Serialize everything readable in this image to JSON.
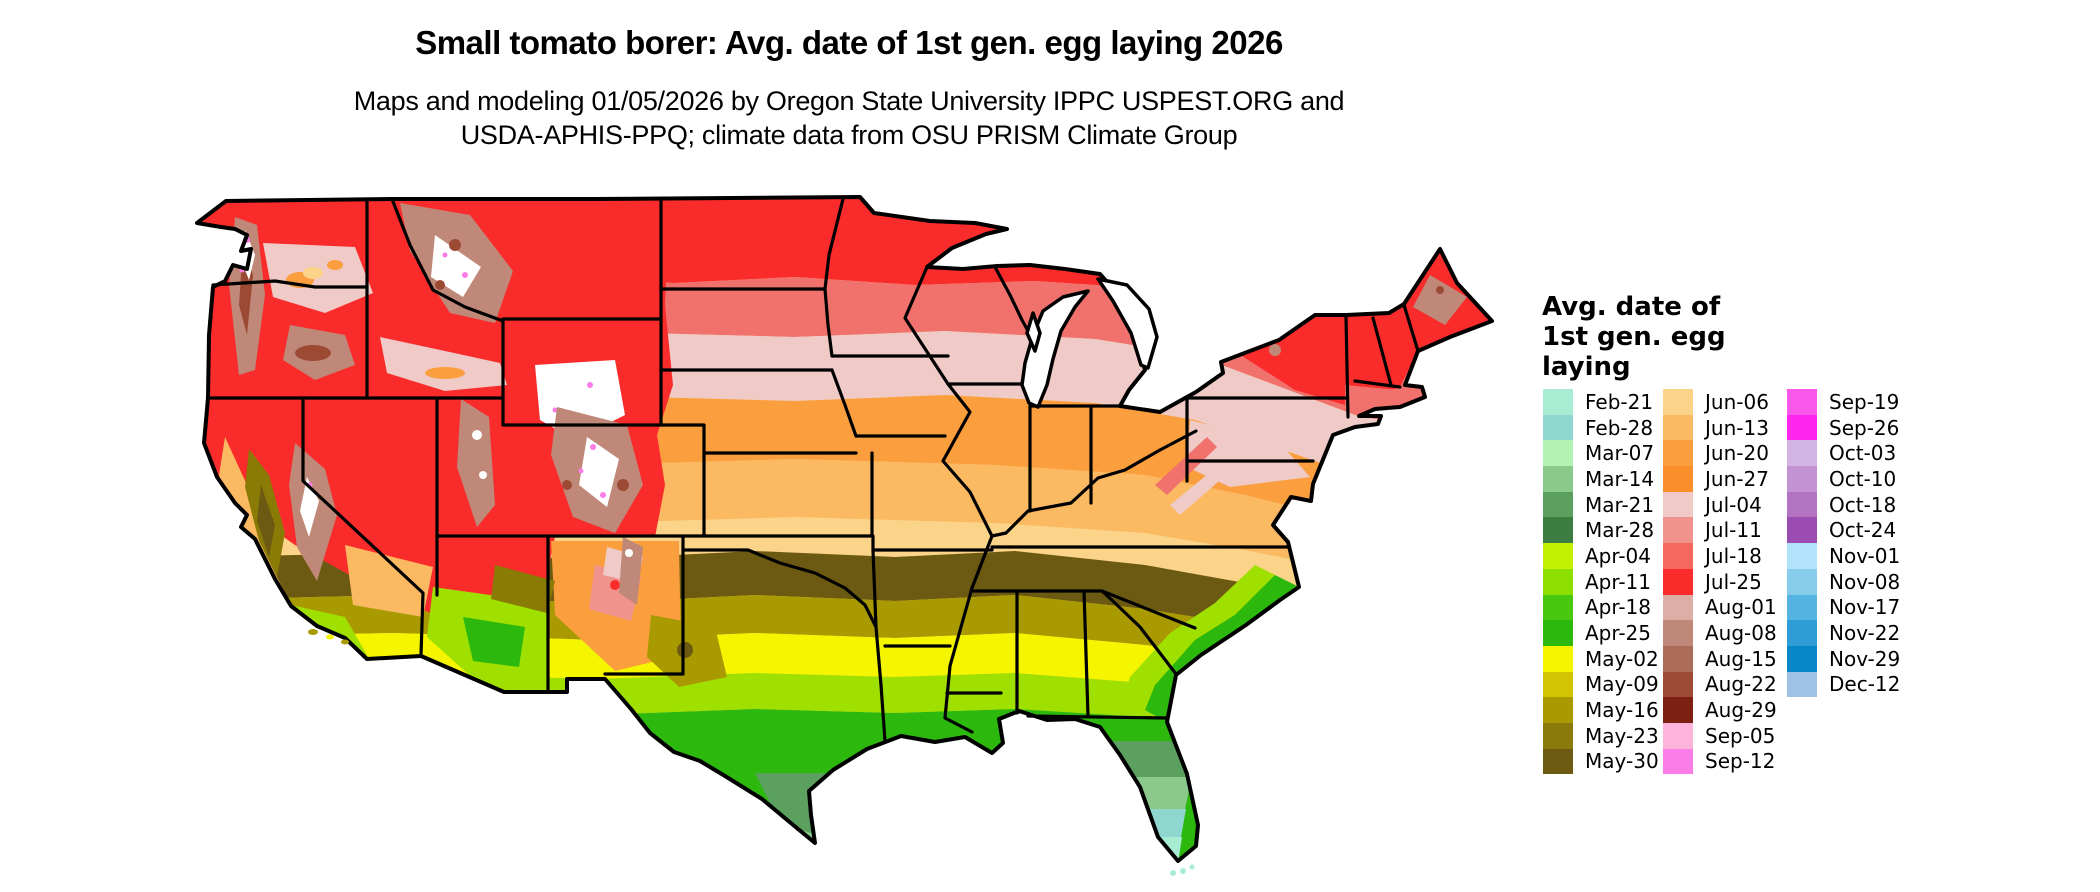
{
  "title": "Small tomato borer: Avg. date of 1st gen. egg laying 2026",
  "subtitle": {
    "line1": "Maps and modeling 01/05/2026 by Oregon State University IPPC USPEST.ORG and",
    "line2": "USDA-APHIS-PPQ; climate data from OSU PRISM Climate Group"
  },
  "legend": {
    "title_lines": [
      "Avg. date of",
      "1st gen. egg",
      "laying"
    ],
    "columns": [
      [
        {
          "label": "Feb-21",
          "color": "#a9ecd4"
        },
        {
          "label": "Feb-28",
          "color": "#8fd7ce"
        },
        {
          "label": "Mar-07",
          "color": "#b2f2b2"
        },
        {
          "label": "Mar-14",
          "color": "#8bc88b"
        },
        {
          "label": "Mar-21",
          "color": "#5ba05f"
        },
        {
          "label": "Mar-28",
          "color": "#3c7d42"
        },
        {
          "label": "Apr-04",
          "color": "#c3ef00"
        },
        {
          "label": "Apr-11",
          "color": "#8cdf00"
        },
        {
          "label": "Apr-18",
          "color": "#4ac810"
        },
        {
          "label": "Apr-25",
          "color": "#2db80e"
        },
        {
          "label": "May-02",
          "color": "#f5f500"
        },
        {
          "label": "May-09",
          "color": "#d2c400"
        },
        {
          "label": "May-16",
          "color": "#a89a00"
        },
        {
          "label": "May-23",
          "color": "#897a0a"
        },
        {
          "label": "May-30",
          "color": "#6d5a12"
        }
      ],
      [
        {
          "label": "Jun-06",
          "color": "#fbd389"
        },
        {
          "label": "Jun-13",
          "color": "#fbba62"
        },
        {
          "label": "Jun-20",
          "color": "#fb9e3e"
        },
        {
          "label": "Jun-27",
          "color": "#f98e2b"
        },
        {
          "label": "Jul-04",
          "color": "#efcac7"
        },
        {
          "label": "Jul-11",
          "color": "#f1938d"
        },
        {
          "label": "Jul-18",
          "color": "#f4685e"
        },
        {
          "label": "Jul-25",
          "color": "#fa2b2b"
        },
        {
          "label": "Aug-01",
          "color": "#dcaea6"
        },
        {
          "label": "Aug-08",
          "color": "#bf8878"
        },
        {
          "label": "Aug-15",
          "color": "#ab6c5a"
        },
        {
          "label": "Aug-22",
          "color": "#9c4a34"
        },
        {
          "label": "Aug-29",
          "color": "#7c2112"
        },
        {
          "label": "Sep-05",
          "color": "#fdb3da"
        },
        {
          "label": "Sep-12",
          "color": "#fc7de7"
        }
      ],
      [
        {
          "label": "Sep-19",
          "color": "#f957e9"
        },
        {
          "label": "Sep-26",
          "color": "#fd26ef"
        },
        {
          "label": "Oct-03",
          "color": "#d3b3e3"
        },
        {
          "label": "Oct-10",
          "color": "#c292d2"
        },
        {
          "label": "Oct-18",
          "color": "#b273c2"
        },
        {
          "label": "Oct-24",
          "color": "#9b4cb2"
        },
        {
          "label": "Nov-01",
          "color": "#b3e3fb"
        },
        {
          "label": "Nov-08",
          "color": "#86cdeb"
        },
        {
          "label": "Nov-17",
          "color": "#55b3e2"
        },
        {
          "label": "Nov-22",
          "color": "#2e9dd5"
        },
        {
          "label": "Nov-29",
          "color": "#0786ca"
        },
        {
          "label": "Dec-12",
          "color": "#9fc1e5"
        }
      ]
    ]
  },
  "map": {
    "state_border_color": "#000000",
    "water_color": "#ffffff",
    "background": "#ffffff"
  },
  "chart_data": {
    "type": "heatmap",
    "title": "Small tomato borer: Avg. date of 1st gen. egg laying 2026",
    "legend_title": "Avg. date of 1st gen. egg laying",
    "legend_position": "right",
    "bins": [
      {
        "date": "Feb-21",
        "color": "#a9ecd4"
      },
      {
        "date": "Feb-28",
        "color": "#8fd7ce"
      },
      {
        "date": "Mar-07",
        "color": "#b2f2b2"
      },
      {
        "date": "Mar-14",
        "color": "#8bc88b"
      },
      {
        "date": "Mar-21",
        "color": "#5ba05f"
      },
      {
        "date": "Mar-28",
        "color": "#3c7d42"
      },
      {
        "date": "Apr-04",
        "color": "#c3ef00"
      },
      {
        "date": "Apr-11",
        "color": "#8cdf00"
      },
      {
        "date": "Apr-18",
        "color": "#4ac810"
      },
      {
        "date": "Apr-25",
        "color": "#2db80e"
      },
      {
        "date": "May-02",
        "color": "#f5f500"
      },
      {
        "date": "May-09",
        "color": "#d2c400"
      },
      {
        "date": "May-16",
        "color": "#a89a00"
      },
      {
        "date": "May-23",
        "color": "#897a0a"
      },
      {
        "date": "May-30",
        "color": "#6d5a12"
      },
      {
        "date": "Jun-06",
        "color": "#fbd389"
      },
      {
        "date": "Jun-13",
        "color": "#fbba62"
      },
      {
        "date": "Jun-20",
        "color": "#fb9e3e"
      },
      {
        "date": "Jun-27",
        "color": "#f98e2b"
      },
      {
        "date": "Jul-04",
        "color": "#efcac7"
      },
      {
        "date": "Jul-11",
        "color": "#f1938d"
      },
      {
        "date": "Jul-18",
        "color": "#f4685e"
      },
      {
        "date": "Jul-25",
        "color": "#fa2b2b"
      },
      {
        "date": "Aug-01",
        "color": "#dcaea6"
      },
      {
        "date": "Aug-08",
        "color": "#bf8878"
      },
      {
        "date": "Aug-15",
        "color": "#ab6c5a"
      },
      {
        "date": "Aug-22",
        "color": "#9c4a34"
      },
      {
        "date": "Aug-29",
        "color": "#7c2112"
      },
      {
        "date": "Sep-05",
        "color": "#fdb3da"
      },
      {
        "date": "Sep-12",
        "color": "#fc7de7"
      },
      {
        "date": "Sep-19",
        "color": "#f957e9"
      },
      {
        "date": "Sep-26",
        "color": "#fd26ef"
      },
      {
        "date": "Oct-03",
        "color": "#d3b3e3"
      },
      {
        "date": "Oct-10",
        "color": "#c292d2"
      },
      {
        "date": "Oct-18",
        "color": "#b273c2"
      },
      {
        "date": "Oct-24",
        "color": "#9b4cb2"
      },
      {
        "date": "Nov-01",
        "color": "#b3e3fb"
      },
      {
        "date": "Nov-08",
        "color": "#86cdeb"
      },
      {
        "date": "Nov-17",
        "color": "#55b3e2"
      },
      {
        "date": "Nov-22",
        "color": "#2e9dd5"
      },
      {
        "date": "Nov-29",
        "color": "#0786ca"
      },
      {
        "date": "Dec-12",
        "color": "#9fc1e5"
      }
    ]
  }
}
